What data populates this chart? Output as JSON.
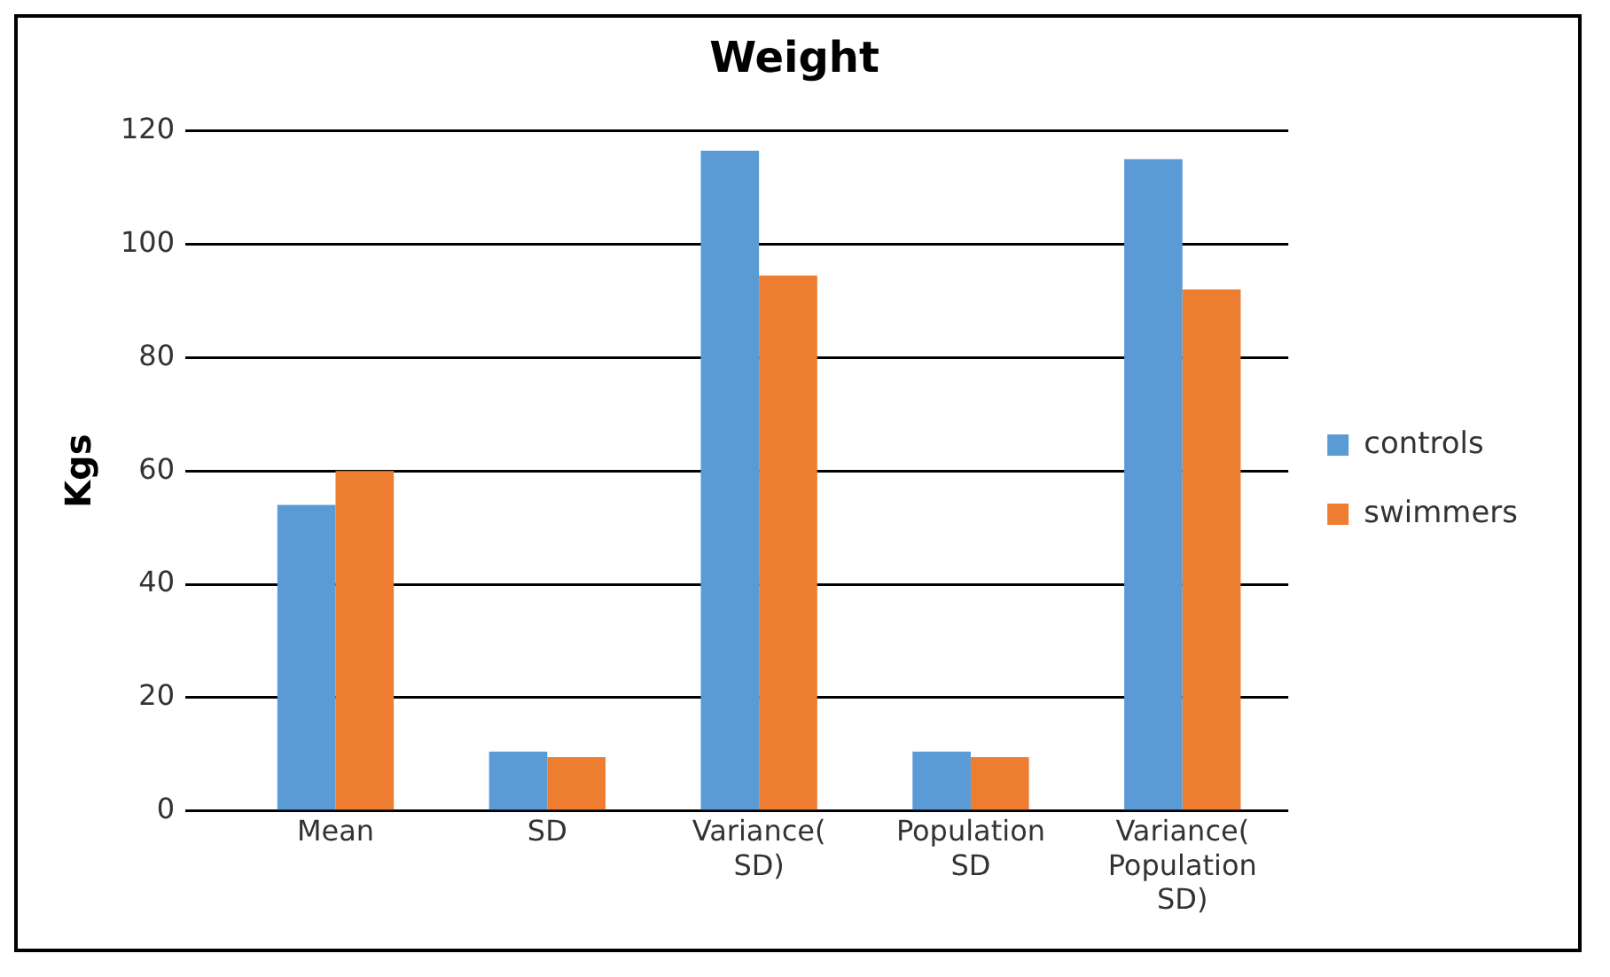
{
  "chart_data": {
    "type": "bar",
    "title": "Weight",
    "ylabel": "Kgs",
    "categories": [
      "Mean",
      "SD",
      "Variance( SD)",
      "Population SD",
      "Variance( Population SD)"
    ],
    "series": [
      {
        "name": "controls",
        "color": "#5b9bd5",
        "values": [
          54,
          10.5,
          116.5,
          10.5,
          115
        ]
      },
      {
        "name": "swimmers",
        "color": "#ed7d31",
        "values": [
          60,
          9.5,
          94.5,
          9.5,
          92
        ]
      }
    ],
    "ylim": [
      0,
      120
    ],
    "yticks": [
      0,
      20,
      40,
      60,
      80,
      100,
      120
    ],
    "grid": "y",
    "legend": "right"
  }
}
